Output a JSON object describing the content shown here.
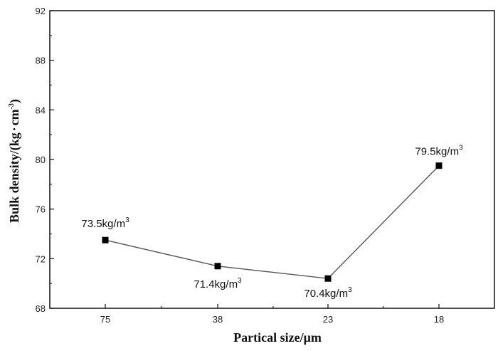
{
  "chart_data": {
    "type": "line",
    "title": "",
    "xlabel": "Partical size/μm",
    "ylabel": "Bulk density/(kg·cm⁻³)",
    "ylabel_main": "Bulk density/(kg",
    "ylabel_unit": "cm",
    "ylabel_exp": "-3",
    "categories": [
      "75",
      "38",
      "23",
      "18"
    ],
    "values": [
      73.5,
      71.4,
      70.4,
      79.5
    ],
    "data_labels": [
      {
        "base": "73.5kg/m",
        "sup": "3"
      },
      {
        "base": "71.4kg/m",
        "sup": "3"
      },
      {
        "base": "70.4kg/m",
        "sup": "3"
      },
      {
        "base": "79.5kg/m",
        "sup": "3"
      }
    ],
    "ylim": [
      68,
      92
    ],
    "yticks": [
      "68",
      "72",
      "76",
      "80",
      "84",
      "88",
      "92"
    ],
    "marker": "square",
    "line_color": "#555555",
    "marker_color": "#000000",
    "grid": false,
    "legend": "none"
  }
}
